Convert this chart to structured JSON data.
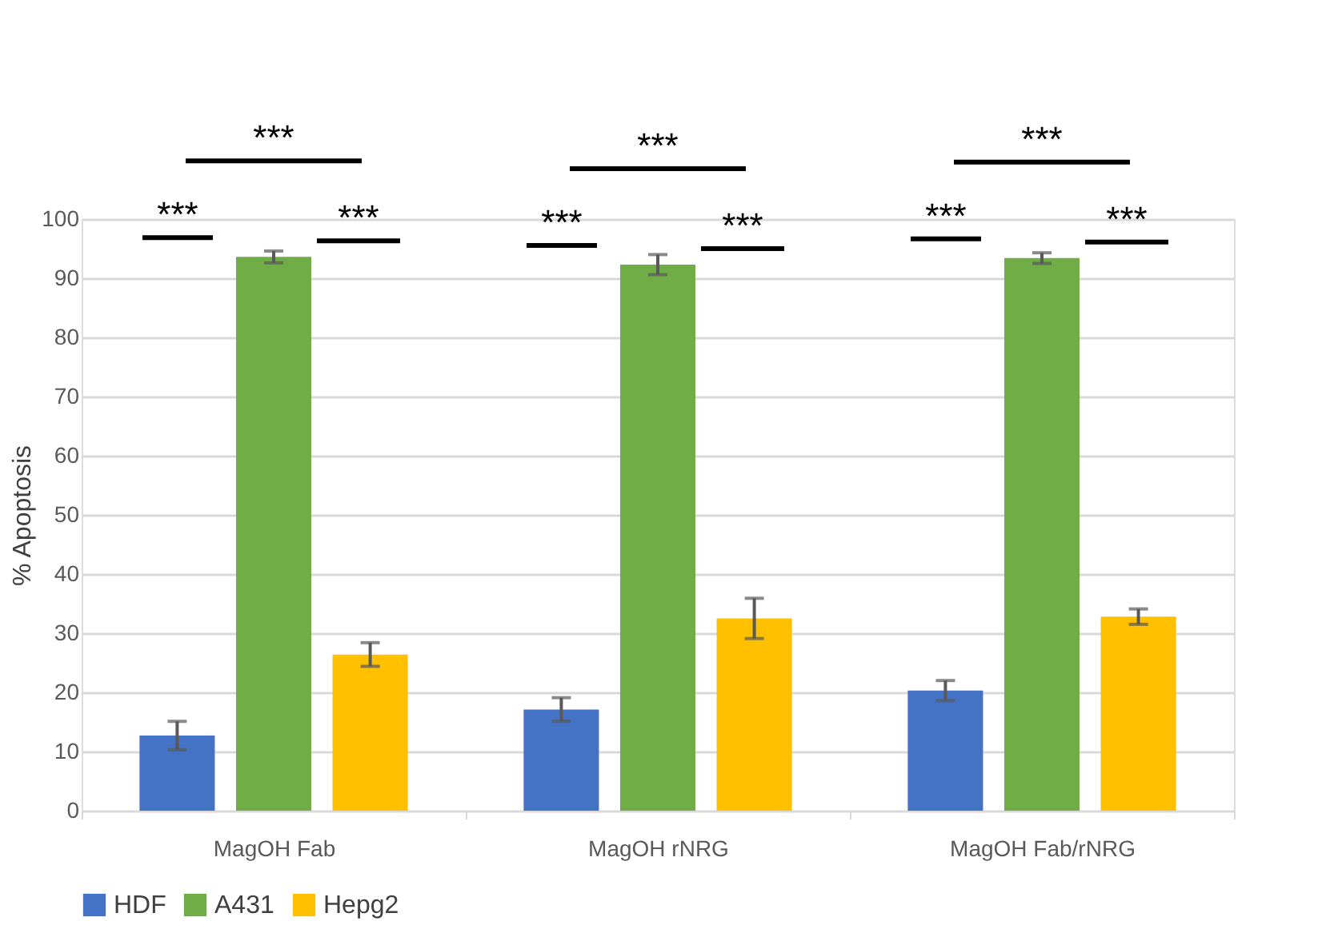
{
  "chart_data": {
    "type": "bar",
    "ylabel": "% Apoptosis",
    "categories": [
      "MagOH Fab",
      "MagOH rNRG",
      "MagOH Fab/rNRG"
    ],
    "series": [
      {
        "name": "HDF",
        "color": "#4472c4",
        "values": [
          12.7,
          17.1,
          20.3
        ],
        "errors": [
          2.4,
          2.0,
          1.7
        ]
      },
      {
        "name": "A431",
        "color": "#70ad47",
        "values": [
          93.6,
          92.3,
          93.4
        ],
        "errors": [
          1.0,
          1.7,
          0.9
        ]
      },
      {
        "name": "Hepg2",
        "color": "#ffc000",
        "values": [
          26.4,
          32.5,
          32.8
        ],
        "errors": [
          2.0,
          3.4,
          1.3
        ]
      }
    ],
    "ylim": [
      0,
      100
    ],
    "yticks": [
      0,
      10,
      20,
      30,
      40,
      50,
      60,
      70,
      80,
      90,
      100
    ],
    "grid": "y",
    "legend": "bottom",
    "annotations": [
      "***",
      "***",
      "***",
      "***",
      "***",
      "***",
      "***",
      "***",
      "***"
    ]
  }
}
